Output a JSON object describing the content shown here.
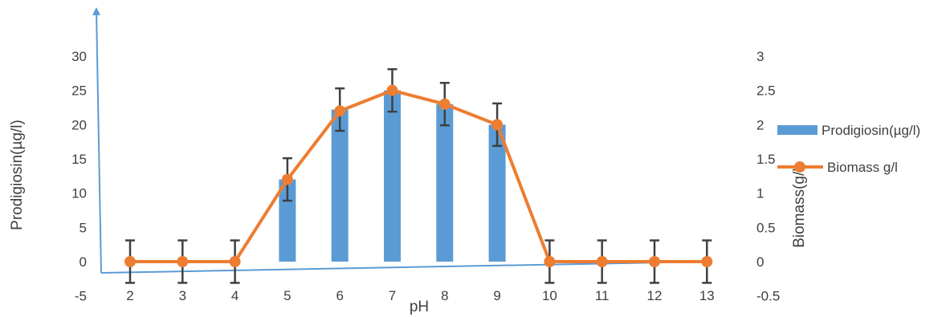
{
  "chart_data": {
    "type": "bar",
    "categories": [
      "2",
      "3",
      "4",
      "5",
      "6",
      "7",
      "8",
      "9",
      "10",
      "11",
      "12",
      "13"
    ],
    "xlabel": "pH",
    "ylabel": "Prodigiosin(µg/l)",
    "y2label": "Biomass(g/l)",
    "ylim": [
      -5,
      30
    ],
    "y2lim": [
      -0.5,
      3
    ],
    "yticks": [
      "-5",
      "0",
      "5",
      "10",
      "15",
      "20",
      "25",
      "30"
    ],
    "y2ticks": [
      "-0.5",
      "0",
      "0.5",
      "1",
      "1.5",
      "2",
      "2.5",
      "3"
    ],
    "series": [
      {
        "name": "Prodigiosin(µg/l)",
        "kind": "bar",
        "axis": "left",
        "color": "#5B9BD5",
        "values": [
          0,
          0,
          0,
          12,
          22.2,
          25,
          23,
          20,
          0,
          0,
          0,
          0
        ],
        "error": [
          3.1,
          3.1,
          3.1,
          3.1,
          3.1,
          3.1,
          3.1,
          3.1,
          3.1,
          3.1,
          3.1,
          3.1
        ]
      },
      {
        "name": "Biomass g/l",
        "kind": "line",
        "axis": "right",
        "color": "#ED7D31",
        "marker": "circle",
        "values": [
          0,
          0,
          0,
          1.2,
          2.2,
          2.5,
          2.3,
          2.0,
          0,
          0,
          0,
          0
        ]
      }
    ],
    "legend_position": "right",
    "grid": false
  }
}
